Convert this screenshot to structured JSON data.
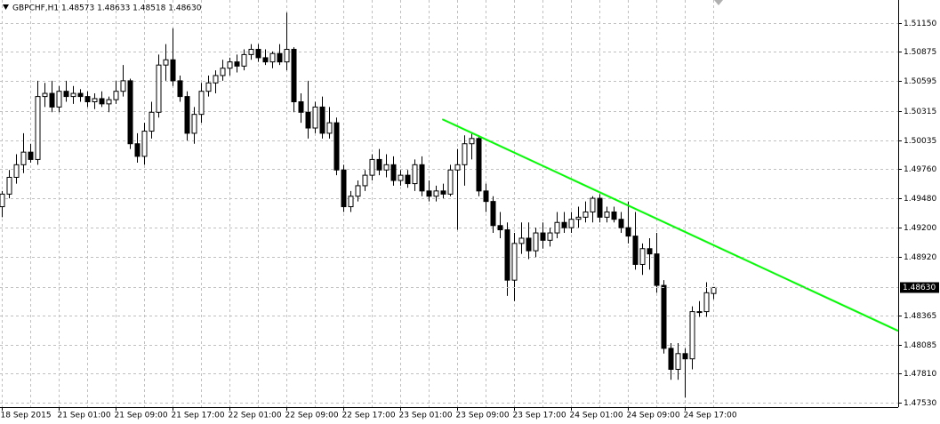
{
  "chart_data": {
    "type": "candlestick",
    "title": "GBPCHF,H1  1.48573 1.48633 1.48518 1.48630",
    "categories": [
      "18 Sep 2015",
      null,
      null,
      null,
      null,
      null,
      null,
      null,
      "21 Sep 01:00",
      null,
      null,
      null,
      null,
      null,
      null,
      null,
      "21 Sep 09:00",
      null,
      null,
      null,
      null,
      null,
      null,
      null,
      "21 Sep 17:00",
      null,
      null,
      null,
      null,
      null,
      null,
      null,
      "22 Sep 01:00",
      null,
      null,
      null,
      null,
      null,
      null,
      null,
      "22 Sep 09:00",
      null,
      null,
      null,
      null,
      null,
      null,
      null,
      "22 Sep 17:00",
      null,
      null,
      null,
      null,
      null,
      null,
      null,
      "23 Sep 01:00",
      null,
      null,
      null,
      null,
      null,
      null,
      null,
      "23 Sep 09:00",
      null,
      null,
      null,
      null,
      null,
      null,
      null,
      "23 Sep 17:00",
      null,
      null,
      null,
      null,
      null,
      null,
      null,
      "24 Sep 01:00",
      null,
      null,
      null,
      null,
      null,
      null,
      null,
      "24 Sep 09:00",
      null,
      null,
      null,
      null,
      null,
      null,
      null,
      "24 Sep 17:00",
      null,
      null,
      null,
      null
    ],
    "open": [
      1.494,
      1.4952,
      1.4968,
      1.498,
      1.4992,
      1.4985,
      1.5045,
      1.5048,
      1.5035,
      1.505,
      1.5045,
      1.5048,
      1.5045,
      1.504,
      1.5043,
      1.5038,
      1.5042,
      1.505,
      1.506,
      1.5,
      1.4988,
      1.5012,
      1.503,
      1.5075,
      1.508,
      1.506,
      1.5045,
      1.501,
      1.5028,
      1.505,
      1.5058,
      1.5065,
      1.5072,
      1.5078,
      1.5074,
      1.5085,
      1.509,
      1.5082,
      1.5078,
      1.5086,
      1.5078,
      1.509,
      1.504,
      1.503,
      1.5015,
      1.5035,
      1.501,
      1.502,
      1.4975,
      1.494,
      1.495,
      1.496,
      1.497,
      1.4985,
      1.4975,
      1.498,
      1.4965,
      1.497,
      1.4962,
      1.498,
      1.4955,
      1.495,
      1.4955,
      1.4952,
      1.4975,
      1.498,
      1.5,
      1.5005,
      1.4955,
      1.4945,
      1.4922,
      1.4918,
      1.487,
      1.4905,
      1.491,
      1.4898,
      1.4915,
      1.4908,
      1.4915,
      1.4925,
      1.492,
      1.4928,
      1.493,
      1.4935,
      1.4948,
      1.493,
      1.4935,
      1.4928,
      1.492,
      1.4912,
      1.4885,
      1.49,
      1.4895,
      1.4865,
      1.4805,
      1.4785,
      1.48,
      1.4795,
      1.484,
      1.484,
      1.48573
    ],
    "high": [
      1.4955,
      1.4975,
      1.499,
      1.501,
      1.5,
      1.506,
      1.5058,
      1.506,
      1.5055,
      1.506,
      1.5055,
      1.5052,
      1.505,
      1.5048,
      1.505,
      1.5045,
      1.506,
      1.5075,
      1.5062,
      1.501,
      1.502,
      1.504,
      1.5085,
      1.5095,
      1.511,
      1.5065,
      1.505,
      1.5035,
      1.5058,
      1.5065,
      1.507,
      1.508,
      1.5082,
      1.5085,
      1.509,
      1.5095,
      1.5095,
      1.509,
      1.5088,
      1.5095,
      1.5125,
      1.5092,
      1.5048,
      1.506,
      1.504,
      1.5045,
      1.5035,
      1.5025,
      1.498,
      1.4955,
      1.4965,
      1.4975,
      1.499,
      1.4995,
      1.499,
      1.4988,
      1.4975,
      1.4975,
      1.4985,
      1.4988,
      1.4965,
      1.496,
      1.4962,
      1.498,
      1.4995,
      1.5008,
      1.501,
      1.5008,
      1.4962,
      1.495,
      1.4935,
      1.4925,
      1.4915,
      1.4925,
      1.4925,
      1.492,
      1.4925,
      1.492,
      1.4935,
      1.4935,
      1.4935,
      1.494,
      1.4945,
      1.495,
      1.4952,
      1.494,
      1.494,
      1.4935,
      1.4945,
      1.4935,
      1.4905,
      1.491,
      1.4915,
      1.487,
      1.481,
      1.481,
      1.4805,
      1.4845,
      1.485,
      1.4868,
      1.48633
    ],
    "low": [
      1.493,
      1.4948,
      1.4962,
      1.4972,
      1.4982,
      1.498,
      1.5035,
      1.503,
      1.503,
      1.504,
      1.5038,
      1.504,
      1.5035,
      1.5033,
      1.5035,
      1.503,
      1.5038,
      1.5045,
      1.4995,
      1.4982,
      1.498,
      1.5005,
      1.5025,
      1.506,
      1.5055,
      1.504,
      1.5003,
      1.5,
      1.502,
      1.5045,
      1.5048,
      1.506,
      1.5065,
      1.5068,
      1.507,
      1.508,
      1.5078,
      1.5075,
      1.5072,
      1.5075,
      1.507,
      1.503,
      1.502,
      1.5005,
      1.501,
      1.5005,
      1.5005,
      1.497,
      1.4935,
      1.4935,
      1.4945,
      1.4955,
      1.4965,
      1.497,
      1.4968,
      1.496,
      1.496,
      1.4958,
      1.4955,
      1.495,
      1.4945,
      1.4945,
      1.4948,
      1.495,
      1.4918,
      1.496,
      1.4985,
      1.495,
      1.4935,
      1.4915,
      1.491,
      1.4855,
      1.485,
      1.4895,
      1.489,
      1.4892,
      1.49,
      1.4902,
      1.491,
      1.4915,
      1.4915,
      1.492,
      1.4925,
      1.4925,
      1.4925,
      1.4925,
      1.4925,
      1.4915,
      1.4905,
      1.488,
      1.4875,
      1.488,
      1.4858,
      1.48,
      1.4775,
      1.4775,
      1.4758,
      1.4785,
      1.4835,
      1.4835,
      1.48518
    ],
    "close": [
      1.4952,
      1.4968,
      1.498,
      1.4992,
      1.4985,
      1.5045,
      1.5048,
      1.5035,
      1.505,
      1.5045,
      1.5048,
      1.5045,
      1.504,
      1.5043,
      1.5038,
      1.5042,
      1.505,
      1.506,
      1.5,
      1.4988,
      1.5012,
      1.503,
      1.5075,
      1.508,
      1.506,
      1.5045,
      1.501,
      1.5028,
      1.505,
      1.5058,
      1.5065,
      1.5072,
      1.5078,
      1.5074,
      1.5085,
      1.509,
      1.5082,
      1.5078,
      1.5086,
      1.5078,
      1.509,
      1.504,
      1.503,
      1.5015,
      1.5035,
      1.501,
      1.502,
      1.4975,
      1.494,
      1.495,
      1.496,
      1.497,
      1.4985,
      1.4975,
      1.498,
      1.4965,
      1.497,
      1.4962,
      1.498,
      1.4955,
      1.495,
      1.4955,
      1.4952,
      1.4975,
      1.498,
      1.5,
      1.5005,
      1.4955,
      1.4945,
      1.4922,
      1.4918,
      1.487,
      1.4905,
      1.491,
      1.4898,
      1.4915,
      1.4908,
      1.4915,
      1.4925,
      1.492,
      1.4928,
      1.493,
      1.4935,
      1.4948,
      1.493,
      1.4935,
      1.4928,
      1.492,
      1.4912,
      1.4885,
      1.49,
      1.4895,
      1.4865,
      1.4805,
      1.4785,
      1.48,
      1.4795,
      1.484,
      1.484,
      1.4858,
      1.4863
    ],
    "bull_color": "#ffffff",
    "bear_color": "#000000",
    "outline_color": "#000000",
    "xlim": [
      -0.25,
      126
    ],
    "ylim": [
      1.4749,
      1.5137
    ],
    "yticks": [
      {
        "value": 1.5115,
        "label": "1.51150"
      },
      {
        "value": 1.50875,
        "label": "1.50875"
      },
      {
        "value": 1.50595,
        "label": "1.50595"
      },
      {
        "value": 1.50315,
        "label": "1.50315"
      },
      {
        "value": 1.50035,
        "label": "1.50035"
      },
      {
        "value": 1.4976,
        "label": "1.49760"
      },
      {
        "value": 1.4948,
        "label": "1.49480"
      },
      {
        "value": 1.492,
        "label": "1.49200"
      },
      {
        "value": 1.4892,
        "label": "1.48920"
      },
      {
        "value": 1.48365,
        "label": "1.48365"
      },
      {
        "value": 1.48085,
        "label": "1.48085"
      },
      {
        "value": 1.4781,
        "label": "1.47810"
      },
      {
        "value": 1.4753,
        "label": "1.47530"
      }
    ],
    "current_price": {
      "value": 1.4863,
      "label": "1.48630"
    },
    "trendline": {
      "color": "#00ff00",
      "x": [
        61.9,
        126
      ],
      "y": [
        1.50234,
        1.48216
      ]
    },
    "grid": true
  }
}
